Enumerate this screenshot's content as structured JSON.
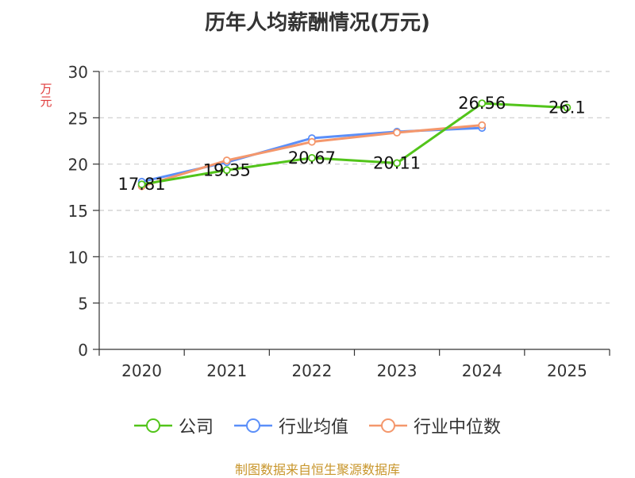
{
  "title": "历年人均薪酬情况(万元)",
  "source": "制图数据来自恒生聚源数据库",
  "chart_data": {
    "type": "line",
    "title": "历年人均薪酬情况(万元)",
    "ylabel": "万元",
    "xlabel": "",
    "x": [
      "2020",
      "2021",
      "2022",
      "2023",
      "2024",
      "2025"
    ],
    "ylim": [
      0,
      30
    ],
    "yticks": [
      0,
      5,
      10,
      15,
      20,
      25,
      30
    ],
    "grid": true,
    "legend_position": "bottom",
    "series": [
      {
        "name": "公司",
        "color": "#52c41a",
        "values": [
          17.81,
          19.35,
          20.67,
          20.11,
          26.56,
          26.1
        ],
        "labels": [
          "17.81",
          "19.35",
          "20.67",
          "20.11",
          "26.56",
          "26.1"
        ]
      },
      {
        "name": "行业均值",
        "color": "#5b8ff9",
        "values": [
          18.1,
          20.2,
          22.8,
          23.5,
          23.9,
          null
        ]
      },
      {
        "name": "行业中位数",
        "color": "#f4976c",
        "values": [
          17.6,
          20.4,
          22.4,
          23.4,
          24.2,
          null
        ]
      }
    ]
  }
}
